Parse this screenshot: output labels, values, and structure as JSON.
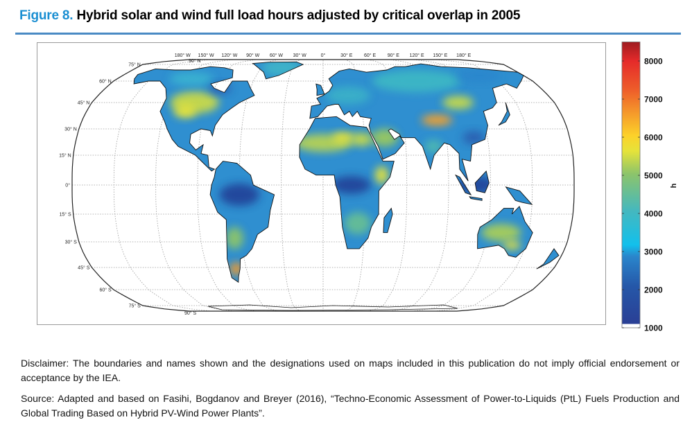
{
  "figure": {
    "label": "Figure 8.",
    "title": "Hybrid solar and wind full load hours adjusted by critical overlap in 2005",
    "accent_color": "#1b8fd2"
  },
  "map": {
    "projection": "Robinson-like world map",
    "longitude_labels": [
      "180° W",
      "150° W",
      "120° W",
      "90° W",
      "60° W",
      "30° W",
      "0°",
      "30° E",
      "60° E",
      "90° E",
      "120° E",
      "150° E",
      "180° E"
    ],
    "pole_label_north": "90° N",
    "pole_label_south": "90° S",
    "latitude_labels": [
      {
        "lat": 75,
        "text": "75° N"
      },
      {
        "lat": 60,
        "text": "60° N"
      },
      {
        "lat": 45,
        "text": "45° N"
      },
      {
        "lat": 30,
        "text": "30° N"
      },
      {
        "lat": 15,
        "text": "15° N"
      },
      {
        "lat": 0,
        "text": "0°"
      },
      {
        "lat": -15,
        "text": "15° S"
      },
      {
        "lat": -30,
        "text": "30° S"
      },
      {
        "lat": -45,
        "text": "45° S"
      },
      {
        "lat": -60,
        "text": "60° S"
      },
      {
        "lat": -75,
        "text": "75° S"
      }
    ]
  },
  "colorbar": {
    "unit_label": "h",
    "range": [
      1000,
      8500
    ],
    "ticks": [
      1000,
      2000,
      3000,
      4000,
      5000,
      6000,
      7000,
      8000
    ],
    "colors": [
      {
        "v": 1000,
        "c": "#2a3f95"
      },
      {
        "v": 2000,
        "c": "#2557a8"
      },
      {
        "v": 2800,
        "c": "#2a86cc"
      },
      {
        "v": 3100,
        "c": "#12c0ec"
      },
      {
        "v": 4000,
        "c": "#44b8bf"
      },
      {
        "v": 5000,
        "c": "#8dc46a"
      },
      {
        "v": 5600,
        "c": "#e6e33a"
      },
      {
        "v": 6000,
        "c": "#fcd22a"
      },
      {
        "v": 6600,
        "c": "#f59a2b"
      },
      {
        "v": 7200,
        "c": "#ee5f2a"
      },
      {
        "v": 8000,
        "c": "#e52a2a"
      },
      {
        "v": 8500,
        "c": "#9e1b20"
      }
    ]
  },
  "notes": {
    "disclaimer": "Disclaimer: The boundaries and names shown and the designations used on maps included in this publication do not imply official endorsement or acceptance by the IEA.",
    "source": "Source: Adapted and based on Fasihi, Bogdanov and Breyer (2016), “Techno-Economic Assessment of Power-to-Liquids (PtL) Fuels Production and Global Trading Based on Hybrid PV-Wind Power Plants”."
  }
}
